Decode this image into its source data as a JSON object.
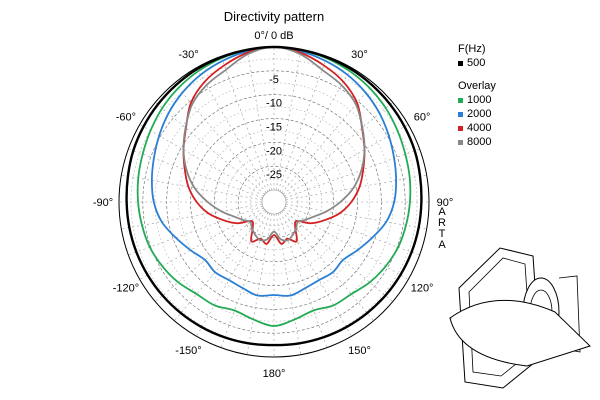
{
  "chart_data": {
    "type": "polar-line",
    "title": "Directivity pattern",
    "top_label": "0°/ 0 dB",
    "angle_labels": [
      {
        "deg": -30,
        "text": "-30°"
      },
      {
        "deg": 30,
        "text": "30°"
      },
      {
        "deg": -60,
        "text": "-60°"
      },
      {
        "deg": 60,
        "text": "60°"
      },
      {
        "deg": -90,
        "text": "-90°"
      },
      {
        "deg": 90,
        "text": "90°"
      },
      {
        "deg": -120,
        "text": "-120°"
      },
      {
        "deg": 120,
        "text": "120°"
      },
      {
        "deg": -150,
        "text": "-150°"
      },
      {
        "deg": 150,
        "text": "150°"
      },
      {
        "deg": 180,
        "text": "180°"
      }
    ],
    "radial_ticks": [
      -5,
      -10,
      -15,
      -20,
      -25
    ],
    "radial_range_db": [
      -30,
      0
    ],
    "grid": true,
    "legend": {
      "position": "right",
      "heading": "F(Hz)",
      "overlay_heading": "Overlay",
      "vertical_label": "ARTA"
    },
    "angles_deg": [
      0,
      10,
      20,
      30,
      40,
      50,
      60,
      70,
      80,
      90,
      100,
      110,
      120,
      130,
      140,
      150,
      160,
      170,
      180
    ],
    "series": [
      {
        "name": "500",
        "color": "#000000",
        "values_db": [
          0,
          -0.1,
          -0.2,
          -0.3,
          -0.5,
          -0.7,
          -0.9,
          -1.1,
          -1.4,
          -1.6,
          -1.7,
          -1.8,
          -1.9,
          -2.0,
          -2.1,
          -2.2,
          -2.3,
          -2.4,
          -2.5
        ]
      },
      {
        "name": "1000",
        "color": "#22aa55",
        "values_db": [
          0,
          -0.2,
          -0.4,
          -0.8,
          -1.3,
          -1.9,
          -2.6,
          -3.2,
          -3.6,
          -4.0,
          -4.4,
          -4.8,
          -5.5,
          -6.3,
          -7.3,
          -7.5,
          -8.3,
          -7.5,
          -6.5
        ]
      },
      {
        "name": "2000",
        "color": "#2a7fd4",
        "values_db": [
          0,
          -0.4,
          -1.0,
          -1.7,
          -2.6,
          -3.6,
          -4.7,
          -5.7,
          -6.5,
          -7.3,
          -8.6,
          -10.6,
          -12.3,
          -13.6,
          -13.3,
          -13.6,
          -13.3,
          -12.6,
          -13.0
        ]
      },
      {
        "name": "4000",
        "color": "#d42020",
        "values_db": [
          0,
          -0.7,
          -2.0,
          -3.4,
          -5.4,
          -8.4,
          -10.6,
          -12.6,
          -14.3,
          -16.3,
          -18.6,
          -21.3,
          -23.6,
          -26.3,
          -25.6,
          -23.0,
          -24.3,
          -23.6,
          -25.6
        ]
      },
      {
        "name": "8000",
        "color": "#888888",
        "values_db": [
          0,
          -1.0,
          -3.0,
          -4.2,
          -5.8,
          -8.3,
          -10.6,
          -13.0,
          -15.6,
          -18.6,
          -21.3,
          -23.6,
          -25.0,
          -26.0,
          -25.3,
          -24.6,
          -24.0,
          -24.6,
          -26.3
        ]
      }
    ]
  },
  "diagram": {
    "name": "speaker-driver-illustration"
  }
}
